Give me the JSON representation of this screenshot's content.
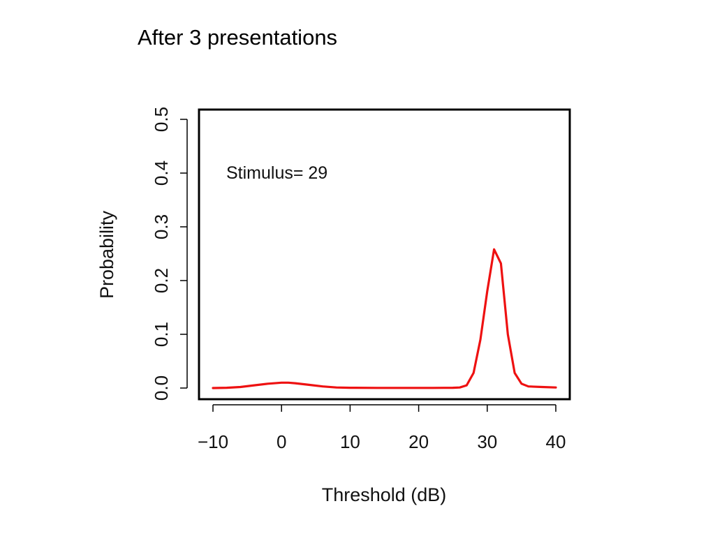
{
  "slide": {
    "title": "After 3 presentations"
  },
  "chart_data": {
    "type": "line",
    "title": "",
    "xlabel": "Threshold (dB)",
    "ylabel": "Probability",
    "annotation": "Stimulus= 29",
    "xlim": [
      -10,
      40
    ],
    "ylim": [
      0,
      0.5
    ],
    "x_ticks": [
      -10,
      0,
      10,
      20,
      30,
      40
    ],
    "x_tick_labels": [
      "−10",
      "0",
      "10",
      "20",
      "30",
      "40"
    ],
    "y_ticks": [
      0.0,
      0.1,
      0.2,
      0.3,
      0.4,
      0.5
    ],
    "y_tick_labels": [
      "0.0",
      "0.1",
      "0.2",
      "0.3",
      "0.4",
      "0.5"
    ],
    "grid": false,
    "legend": "none",
    "series": [
      {
        "color": "#ee1111",
        "x": [
          -10,
          -8,
          -6,
          -4,
          -2,
          0,
          1,
          2,
          4,
          6,
          8,
          10,
          14,
          18,
          22,
          25,
          26,
          27,
          28,
          29,
          30,
          31,
          32,
          33,
          34,
          35,
          36,
          38,
          40
        ],
        "y": [
          0.0,
          0.0005,
          0.002,
          0.005,
          0.008,
          0.01,
          0.01,
          0.009,
          0.006,
          0.003,
          0.001,
          0.0005,
          0.0003,
          0.0003,
          0.0003,
          0.0005,
          0.001,
          0.005,
          0.028,
          0.09,
          0.18,
          0.258,
          0.232,
          0.1,
          0.028,
          0.008,
          0.003,
          0.002,
          0.001
        ]
      }
    ]
  }
}
